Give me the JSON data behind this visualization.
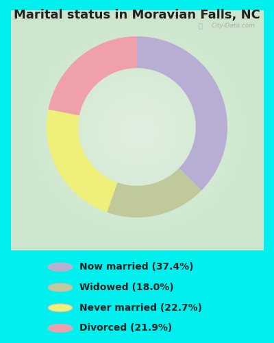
{
  "title": "Marital status in Moravian Falls, NC",
  "slices": [
    37.4,
    18.0,
    22.7,
    21.9
  ],
  "labels": [
    "Now married (37.4%)",
    "Widowed (18.0%)",
    "Never married (22.7%)",
    "Divorced (21.9%)"
  ],
  "colors": [
    "#b8aed4",
    "#c0c99a",
    "#eef07a",
    "#f0a0aa"
  ],
  "bg_cyan": "#00f0f0",
  "bg_chart": "#d8eedc",
  "legend_colors": [
    "#b8aed4",
    "#c0c99a",
    "#eef07a",
    "#f0a0aa"
  ],
  "title_fontsize": 13,
  "watermark": "City-Data.com",
  "start_angle": 90,
  "donut_width": 0.35
}
